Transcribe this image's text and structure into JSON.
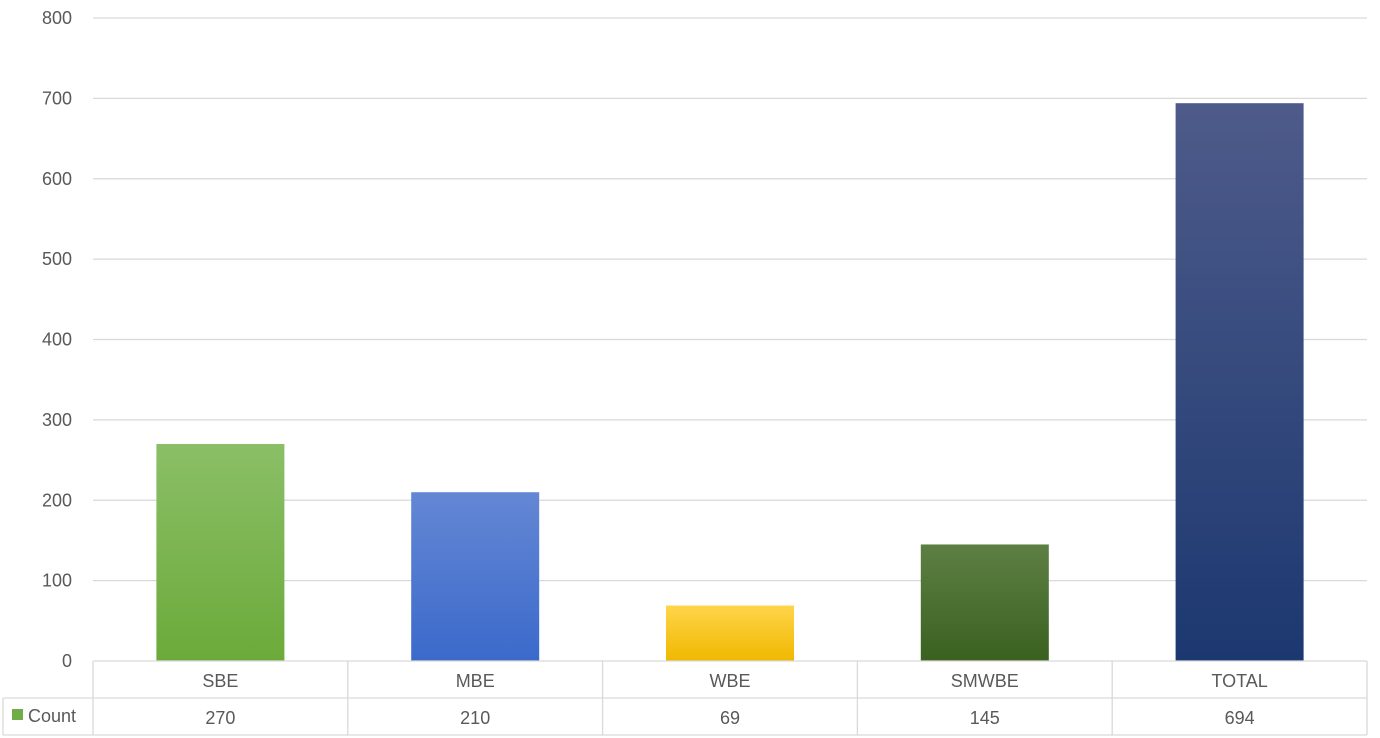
{
  "chart_data": {
    "type": "bar",
    "categories": [
      "SBE",
      "MBE",
      "WBE",
      "SMWBE",
      "TOTAL"
    ],
    "series": [
      {
        "name": "Count",
        "values": [
          270,
          210,
          69,
          145,
          694
        ]
      }
    ],
    "ylim": [
      0,
      800
    ],
    "yticks": [
      0,
      100,
      200,
      300,
      400,
      500,
      600,
      700,
      800
    ],
    "grid": true,
    "data_table": true,
    "legend_key_color": "#70AD47",
    "bar_colors": [
      [
        "#8BBF67",
        "#6BAA3A"
      ],
      [
        "#6487D4",
        "#3B6ACB"
      ],
      [
        "#FFD54A",
        "#F0B800"
      ],
      [
        "#5E7F44",
        "#3A6120"
      ],
      [
        "#4E5B8A",
        "#1C3870"
      ]
    ]
  }
}
